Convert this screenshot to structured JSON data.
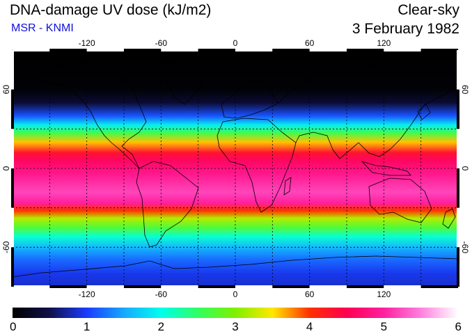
{
  "header": {
    "title": "DNA-damage UV dose (kJ/m2)",
    "subtitle": "MSR - KNMI",
    "condition": "Clear-sky",
    "date": "3 February 1982"
  },
  "map": {
    "projection": "equirectangular",
    "lon_range": [
      -180,
      180
    ],
    "lat_range": [
      -90,
      90
    ],
    "grid_lon_step": 30,
    "grid_lat_step": 30,
    "lon_tick_labels": [
      {
        "lon": -120,
        "label": "-120"
      },
      {
        "lon": -60,
        "label": "-60"
      },
      {
        "lon": 0,
        "label": "0"
      },
      {
        "lon": 60,
        "label": "60"
      },
      {
        "lon": 120,
        "label": "120"
      }
    ],
    "lat_tick_labels": [
      {
        "lat": 60,
        "label": "60"
      },
      {
        "lat": 0,
        "label": "0"
      },
      {
        "lat": -60,
        "label": "-60"
      }
    ],
    "field_profile": [
      {
        "lat": 90,
        "value": 0.0
      },
      {
        "lat": 60,
        "value": 0.05
      },
      {
        "lat": 50,
        "value": 0.35
      },
      {
        "lat": 40,
        "value": 1.1
      },
      {
        "lat": 33,
        "value": 1.9
      },
      {
        "lat": 27,
        "value": 2.6
      },
      {
        "lat": 20,
        "value": 3.6
      },
      {
        "lat": 12,
        "value": 4.3
      },
      {
        "lat": 6,
        "value": 4.6
      },
      {
        "lat": -5,
        "value": 4.9
      },
      {
        "lat": -18,
        "value": 5.2
      },
      {
        "lat": -26,
        "value": 5.0
      },
      {
        "lat": -32,
        "value": 4.0
      },
      {
        "lat": -38,
        "value": 3.2
      },
      {
        "lat": -45,
        "value": 2.7
      },
      {
        "lat": -52,
        "value": 2.1
      },
      {
        "lat": -60,
        "value": 1.6
      },
      {
        "lat": -70,
        "value": 1.2
      },
      {
        "lat": -80,
        "value": 0.95
      },
      {
        "lat": -90,
        "value": 0.85
      }
    ]
  },
  "colorbar": {
    "min": 0,
    "max": 6,
    "labels": [
      "0",
      "1",
      "2",
      "3",
      "4",
      "5",
      "6"
    ],
    "colors": [
      {
        "value": 0.0,
        "color": "#000000"
      },
      {
        "value": 0.5,
        "color": "#10104a"
      },
      {
        "value": 1.0,
        "color": "#1a3cff"
      },
      {
        "value": 1.5,
        "color": "#18a8ff"
      },
      {
        "value": 2.0,
        "color": "#00ffee"
      },
      {
        "value": 2.5,
        "color": "#30ff60"
      },
      {
        "value": 3.0,
        "color": "#80f000"
      },
      {
        "value": 3.5,
        "color": "#ffe800"
      },
      {
        "value": 4.0,
        "color": "#ff3000"
      },
      {
        "value": 4.5,
        "color": "#ff0050"
      },
      {
        "value": 5.0,
        "color": "#ff20a0"
      },
      {
        "value": 5.5,
        "color": "#ff80e0"
      },
      {
        "value": 6.0,
        "color": "#ffffff"
      }
    ]
  }
}
